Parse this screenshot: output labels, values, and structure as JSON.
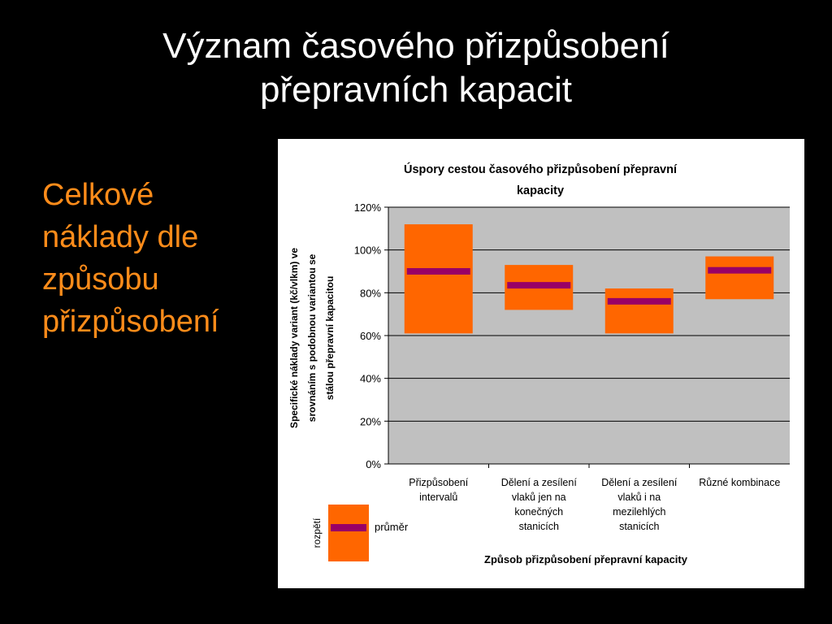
{
  "slide": {
    "title_lines": [
      "Význam časového přizpůsobení",
      "přepravních kapacit"
    ],
    "side_lines": [
      "Celkové",
      "náklady dle",
      "způsobu",
      "přizpůsobení"
    ]
  },
  "colors": {
    "plot_bg": "#c0c0c0",
    "range": "#ff6600",
    "mean": "#990066",
    "side_text": "#ff8c1a"
  },
  "chart_data": {
    "type": "bar",
    "subtype": "range-with-mean",
    "title_lines": [
      "Úspory cestou časového přizpůsobení přepravní",
      "kapacity"
    ],
    "ylabel_lines": [
      "Specifické náklady variant (kč/vlkm) ve",
      "srovnáním s podobnou variantou se",
      "stálou přepravní kapacitou"
    ],
    "xlabel": "Způsob přizpůsobení přepravní kapacity",
    "ylim": [
      0,
      120
    ],
    "yticks": [
      0,
      20,
      40,
      60,
      80,
      100,
      120
    ],
    "ytick_labels": [
      "0%",
      "20%",
      "40%",
      "60%",
      "80%",
      "100%",
      "120%"
    ],
    "grid": true,
    "categories": [
      [
        "Přizpůsobení",
        "intervalů"
      ],
      [
        "Dělení a zesílení",
        "vlaků jen na",
        "konečných",
        "stanicích"
      ],
      [
        "Dělení a zesílení",
        "vlaků i na",
        "mezilehlých",
        "stanicích"
      ],
      [
        "Různé kombinace"
      ]
    ],
    "series": [
      {
        "name": "rozpětí",
        "low": [
          61,
          72,
          61,
          77
        ],
        "high": [
          112,
          93,
          82,
          97
        ]
      },
      {
        "name": "průměr",
        "values": [
          90,
          83.5,
          76,
          90.5
        ]
      }
    ],
    "legend": {
      "position": "bottom-left",
      "range_label": "rozpětí",
      "mean_label": "průměr"
    }
  }
}
